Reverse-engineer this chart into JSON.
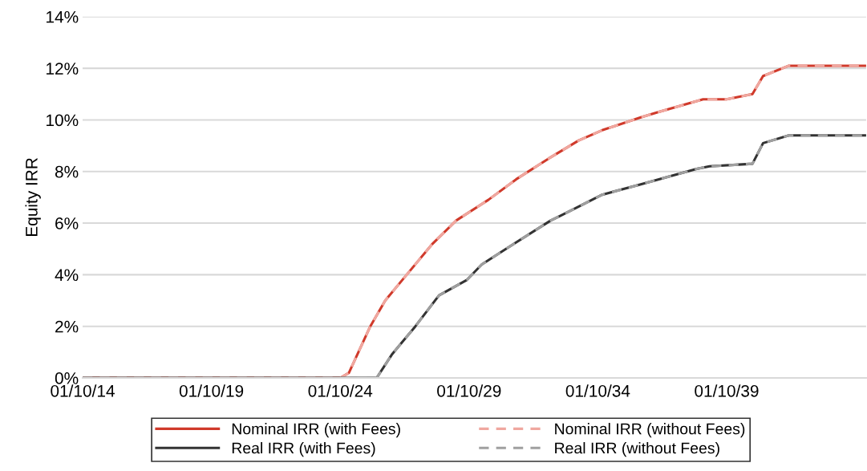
{
  "chart_data": {
    "type": "line",
    "ylabel": "Equity IRR",
    "xlim": [
      "2014-10-01",
      "2045-03"
    ],
    "xticks": [
      {
        "value": "2014-10-01",
        "label": "01/10/14"
      },
      {
        "value": "2019-10-01",
        "label": "01/10/19"
      },
      {
        "value": "2024-10-01",
        "label": "01/10/24"
      },
      {
        "value": "2029-10-01",
        "label": "01/10/29"
      },
      {
        "value": "2034-10-01",
        "label": "01/10/34"
      },
      {
        "value": "2039-10-01",
        "label": "01/10/39"
      }
    ],
    "ylim": [
      0,
      14
    ],
    "yticks": [
      {
        "value": 0,
        "label": "0%"
      },
      {
        "value": 2,
        "label": "2%"
      },
      {
        "value": 4,
        "label": "4%"
      },
      {
        "value": 6,
        "label": "6%"
      },
      {
        "value": 8,
        "label": "8%"
      },
      {
        "value": 10,
        "label": "10%"
      },
      {
        "value": 12,
        "label": "12%"
      },
      {
        "value": 14,
        "label": "14%"
      }
    ],
    "grid": "y",
    "legend": "bottom",
    "marker": "none",
    "series": [
      {
        "name": "Nominal IRR (with Fees)",
        "color": "#d03a2b",
        "line_style": "solid",
        "x": [
          "2014-10-01",
          "2024-10",
          "2025-02",
          "2025-12",
          "2026-07",
          "2027-05",
          "2028-05",
          "2029-04",
          "2030-07",
          "2031-08",
          "2032-11",
          "2033-09",
          "2034-01",
          "2034-12",
          "2036-06",
          "2037-02",
          "2038-11",
          "2039-10",
          "2040-10",
          "2041-03",
          "2042-03",
          "2045-03"
        ],
        "values": [
          0,
          0,
          0.2,
          2.0,
          3.0,
          4.0,
          5.2,
          6.1,
          6.9,
          7.7,
          8.5,
          9.0,
          9.2,
          9.6,
          10.1,
          10.3,
          10.8,
          10.8,
          11.0,
          11.7,
          12.1,
          12.1
        ]
      },
      {
        "name": "Nominal IRR (without Fees)",
        "color": "#f0a8a0",
        "line_style": "dashed",
        "x": [
          "2014-10-01",
          "2024-10",
          "2025-02",
          "2025-12",
          "2026-07",
          "2027-05",
          "2028-05",
          "2029-04",
          "2030-07",
          "2031-08",
          "2032-11",
          "2033-09",
          "2034-01",
          "2034-12",
          "2036-06",
          "2037-02",
          "2038-11",
          "2039-10",
          "2040-10",
          "2041-03",
          "2042-03",
          "2045-03"
        ],
        "values": [
          0,
          0,
          0.2,
          2.0,
          3.0,
          4.0,
          5.2,
          6.1,
          6.9,
          7.7,
          8.5,
          9.0,
          9.2,
          9.6,
          10.1,
          10.3,
          10.8,
          10.8,
          11.0,
          11.7,
          12.1,
          12.1
        ]
      },
      {
        "name": "Real IRR (with Fees)",
        "color": "#333333",
        "line_style": "solid",
        "x": [
          "2014-10-01",
          "2026-03",
          "2026-10",
          "2027-09",
          "2028-08",
          "2029-09",
          "2030-04",
          "2031-07",
          "2032-12",
          "2033-05",
          "2034-12",
          "2036-06",
          "2038-08",
          "2039-02",
          "2040-10",
          "2041-03",
          "2042-03",
          "2045-03"
        ],
        "values": [
          0,
          0,
          0.9,
          2.0,
          3.2,
          3.8,
          4.4,
          5.2,
          6.1,
          6.3,
          7.1,
          7.5,
          8.1,
          8.2,
          8.3,
          9.1,
          9.4,
          9.4
        ]
      },
      {
        "name": "Real IRR (without Fees)",
        "color": "#a0a0a0",
        "line_style": "dashed",
        "x": [
          "2014-10-01",
          "2026-03",
          "2026-10",
          "2027-09",
          "2028-08",
          "2029-09",
          "2030-04",
          "2031-07",
          "2032-12",
          "2033-05",
          "2034-12",
          "2036-06",
          "2038-08",
          "2039-02",
          "2040-10",
          "2041-03",
          "2042-03",
          "2045-03"
        ],
        "values": [
          0,
          0,
          0.9,
          2.0,
          3.2,
          3.8,
          4.4,
          5.2,
          6.1,
          6.3,
          7.1,
          7.5,
          8.1,
          8.2,
          8.3,
          9.1,
          9.4,
          9.4
        ]
      }
    ]
  }
}
